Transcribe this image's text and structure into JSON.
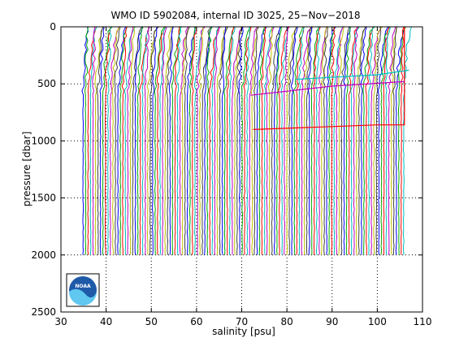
{
  "chart_data": {
    "type": "line",
    "title": "WMO ID 5902084, internal ID 3025, 25−Nov−2018",
    "xlabel": "salinity [psu]",
    "ylabel": "pressure [dbar]",
    "xlim": [
      30,
      110
    ],
    "ylim": [
      2500,
      0
    ],
    "y_reversed": true,
    "x_ticks": [
      "30",
      "40",
      "50",
      "60",
      "70",
      "80",
      "90",
      "100",
      "110"
    ],
    "y_ticks": [
      "0",
      "500",
      "1000",
      "1500",
      "2000",
      "2500"
    ],
    "grid": "dotted",
    "profile_count": 130,
    "profile_offset_psu": 0.55,
    "deep_salinity_start_psu": 34.9,
    "profile_max_pressure_dbar": 2000,
    "profile_colors": [
      "#0000ff",
      "#00aa00",
      "#ff0000",
      "#00bfbf",
      "#bf00bf",
      "#bfbf00",
      "#404040"
    ],
    "highlight_lines": [
      {
        "color": "#ff0000",
        "points": [
          [
            72.5,
            900
          ],
          [
            100,
            860
          ],
          [
            106,
            860
          ],
          [
            106,
            0
          ]
        ]
      },
      {
        "color": "#bf00bf",
        "points": [
          [
            72,
            600
          ],
          [
            90,
            520
          ],
          [
            106,
            480
          ]
        ]
      },
      {
        "color": "#00bfbf",
        "points": [
          [
            82,
            460
          ],
          [
            100,
            420
          ],
          [
            107,
            380
          ]
        ]
      }
    ],
    "logo": {
      "text": "NOAA",
      "colors": [
        "#1e5aa8",
        "#5fc7f0",
        "#ffffff"
      ]
    }
  }
}
